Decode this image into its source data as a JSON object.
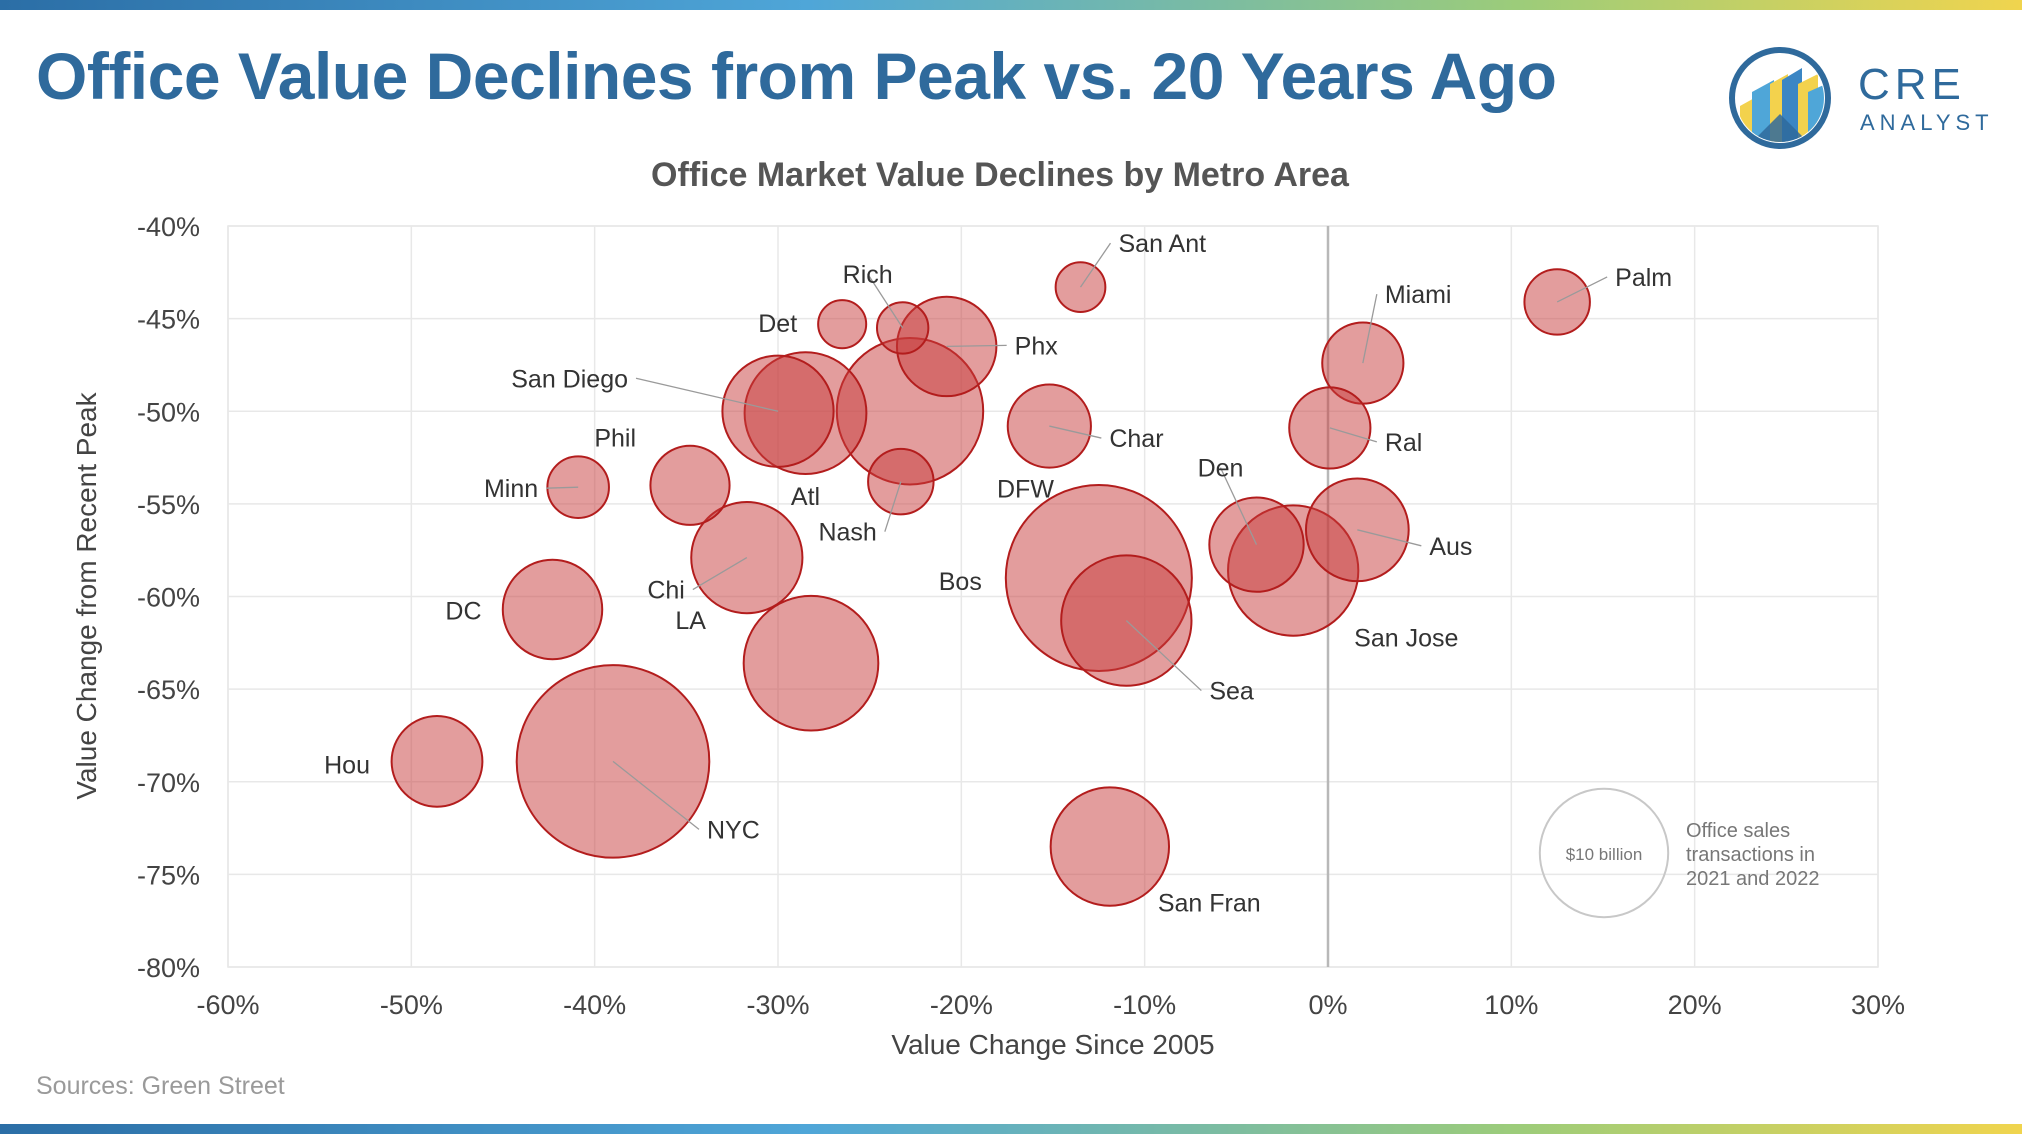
{
  "header": {
    "title": "Office Value Declines from Peak vs. 20 Years Ago",
    "logo_main": "CRE",
    "logo_sub": "ANALYST"
  },
  "footer": {
    "source": "Sources: Green Street"
  },
  "colors": {
    "title": "#2f6a9c",
    "bubble_fill": "rgba(200,60,60,0.5)",
    "bubble_stroke": "#b31d1d"
  },
  "chart_data": {
    "type": "scatter",
    "subtype": "bubble",
    "title": "Office Market Value Declines by Metro Area",
    "xlabel": "Value Change Since 2005",
    "ylabel": "Value Change from Recent Peak",
    "xlim": [
      -60,
      30
    ],
    "ylim": [
      -80,
      -40
    ],
    "x_ticks": [
      -60,
      -50,
      -40,
      -30,
      -20,
      -10,
      0,
      10,
      20,
      30
    ],
    "x_tick_labels": [
      "-60%",
      "-50%",
      "-40%",
      "-30%",
      "-20%",
      "-10%",
      "0%",
      "10%",
      "20%",
      "30%"
    ],
    "y_ticks": [
      -40,
      -45,
      -50,
      -55,
      -60,
      -65,
      -70,
      -75,
      -80
    ],
    "y_tick_labels": [
      "-40%",
      "-45%",
      "-50%",
      "-55%",
      "-60%",
      "-65%",
      "-70%",
      "-75%",
      "-80%"
    ],
    "grid": true,
    "size_unit": "billion USD",
    "points": [
      {
        "label": "San Ant",
        "x": -13.5,
        "y": -43.3,
        "size": 1.5
      },
      {
        "label": "Palm",
        "x": 12.5,
        "y": -44.1,
        "size": 2.6
      },
      {
        "label": "Det",
        "x": -26.5,
        "y": -45.3,
        "size": 1.4
      },
      {
        "label": "Rich",
        "x": -23.2,
        "y": -45.5,
        "size": 1.6
      },
      {
        "label": "Phx",
        "x": -20.8,
        "y": -46.5,
        "size": 6.0
      },
      {
        "label": "Miami",
        "x": 1.9,
        "y": -47.4,
        "size": 4.0
      },
      {
        "label": "San Diego",
        "x": -30.0,
        "y": -50.0,
        "size": 7.5
      },
      {
        "label": "Atl",
        "x": -28.5,
        "y": -50.1,
        "size": 9.0
      },
      {
        "label": "DFW",
        "x": -22.8,
        "y": -50.0,
        "size": 13.0
      },
      {
        "label": "Char",
        "x": -15.2,
        "y": -50.8,
        "size": 4.2
      },
      {
        "label": "Ral",
        "x": 0.1,
        "y": -50.9,
        "size": 4.0
      },
      {
        "label": "Nash",
        "x": -23.3,
        "y": -53.8,
        "size": 2.6
      },
      {
        "label": "Minn",
        "x": -40.9,
        "y": -54.1,
        "size": 2.3
      },
      {
        "label": "Phil",
        "x": -34.8,
        "y": -54.0,
        "size": 3.8
      },
      {
        "label": "Den",
        "x": -3.9,
        "y": -57.2,
        "size": 5.4
      },
      {
        "label": "Aus",
        "x": 1.6,
        "y": -56.4,
        "size": 6.4
      },
      {
        "label": "Chi",
        "x": -31.7,
        "y": -57.9,
        "size": 7.5
      },
      {
        "label": "San Jose",
        "x": -1.9,
        "y": -58.6,
        "size": 10.3
      },
      {
        "label": "Bos",
        "x": -12.5,
        "y": -59.0,
        "size": 21.0
      },
      {
        "label": "DC",
        "x": -42.3,
        "y": -60.7,
        "size": 6.0
      },
      {
        "label": "Sea",
        "x": -11.0,
        "y": -61.3,
        "size": 10.3
      },
      {
        "label": "LA",
        "x": -28.2,
        "y": -63.6,
        "size": 11.0
      },
      {
        "label": "Hou",
        "x": -48.6,
        "y": -68.9,
        "size": 5.0
      },
      {
        "label": "NYC",
        "x": -39.0,
        "y": -68.9,
        "size": 22.5
      },
      {
        "label": "San Fran",
        "x": -11.9,
        "y": -73.5,
        "size": 8.5
      }
    ],
    "size_legend": {
      "value_label": "$10 billion",
      "value": 10,
      "description": "Office sales transactions in 2021 and 2022",
      "description_lines": [
        "Office sales",
        "transactions in",
        "2021 and 2022"
      ]
    }
  }
}
